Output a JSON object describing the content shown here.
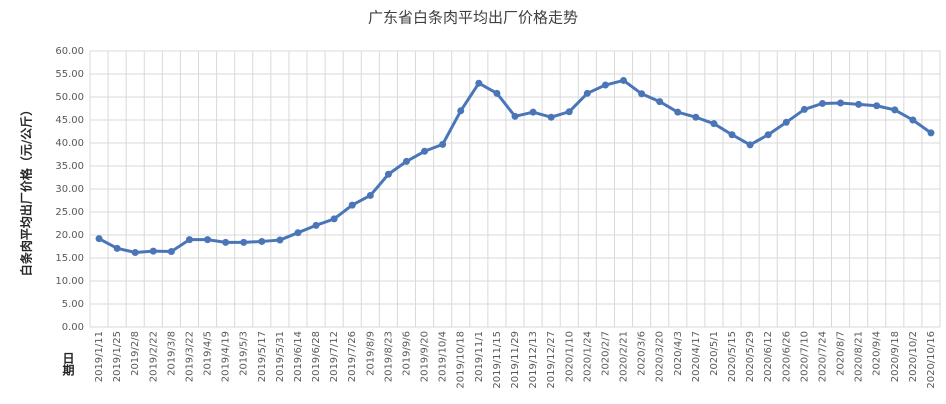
{
  "chart_data": {
    "type": "line",
    "title": "广东省白条肉平均出厂价格走势",
    "y_label": "白条肉平均出厂价格（元/公斤）",
    "x_label": "日期",
    "categories": [
      "2019/1/11",
      "2019/1/25",
      "2019/2/8",
      "2019/2/22",
      "2019/3/8",
      "2019/3/22",
      "2019/4/5",
      "2019/4/19",
      "2019/5/3",
      "2019/5/17",
      "2019/5/31",
      "2019/6/14",
      "2019/6/28",
      "2019/7/12",
      "2019/7/26",
      "2019/8/9",
      "2019/8/23",
      "2019/9/6",
      "2019/9/20",
      "2019/10/4",
      "2019/10/18",
      "2019/11/1",
      "2019/11/15",
      "2019/11/29",
      "2019/12/13",
      "2019/12/27",
      "2020/1/10",
      "2020/1/24",
      "2020/2/7",
      "2020/2/21",
      "2020/3/6",
      "2020/3/20",
      "2020/4/3",
      "2020/4/17",
      "2020/5/1",
      "2020/5/15",
      "2020/5/29",
      "2020/6/12",
      "2020/6/26",
      "2020/7/10",
      "2020/7/24",
      "2020/8/7",
      "2020/8/21",
      "2020/9/4",
      "2020/9/18",
      "2020/10/2",
      "2020/10/16"
    ],
    "values": [
      19.2,
      17.1,
      16.2,
      16.5,
      16.4,
      19.0,
      19.0,
      18.4,
      18.4,
      18.6,
      18.9,
      20.5,
      22.1,
      23.5,
      26.5,
      28.6,
      33.2,
      36.0,
      38.2,
      39.7,
      47.0,
      53.0,
      50.8,
      45.8,
      46.7,
      45.6,
      46.8,
      50.8,
      52.6,
      53.6,
      50.7,
      49.0,
      46.7,
      45.6,
      44.2,
      41.8,
      39.6,
      41.8,
      44.5,
      47.3,
      48.6,
      48.7,
      48.4,
      48.1,
      47.2,
      45.0,
      42.2
    ],
    "color": "#4a76b8",
    "ylim": [
      0,
      60
    ],
    "yticks": [
      {
        "value": 0,
        "label": "0.00"
      },
      {
        "value": 5,
        "label": "5.00"
      },
      {
        "value": 10,
        "label": "10.00"
      },
      {
        "value": 15,
        "label": "15.00"
      },
      {
        "value": 20,
        "label": "20.00"
      },
      {
        "value": 25,
        "label": "25.00"
      },
      {
        "value": 30,
        "label": "30.00"
      },
      {
        "value": 35,
        "label": "35.00"
      },
      {
        "value": 40,
        "label": "40.00"
      },
      {
        "value": 45,
        "label": "45.00"
      },
      {
        "value": 50,
        "label": "50.00"
      },
      {
        "value": 55,
        "label": "55.00"
      },
      {
        "value": 60,
        "label": "60.00"
      }
    ],
    "grid": true
  }
}
